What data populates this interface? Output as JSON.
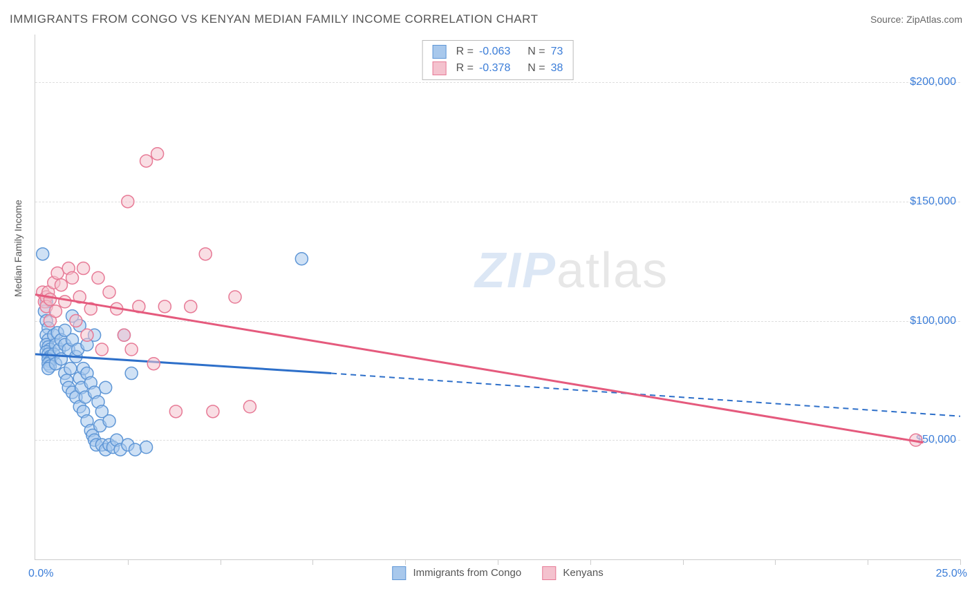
{
  "title": "IMMIGRANTS FROM CONGO VS KENYAN MEDIAN FAMILY INCOME CORRELATION CHART",
  "source_label": "Source:",
  "source_value": "ZipAtlas.com",
  "y_axis_label": "Median Family Income",
  "watermark_zip": "ZIP",
  "watermark_atlas": "atlas",
  "chart": {
    "type": "scatter",
    "xlim": [
      0,
      25
    ],
    "ylim": [
      0,
      220000
    ],
    "background_color": "#ffffff",
    "grid_color": "#dddddd",
    "axis_color": "#cccccc",
    "tick_label_color": "#3b7dd8",
    "tick_label_fontsize": 16,
    "axis_label_fontsize": 14,
    "x_min_label": "0.0%",
    "x_max_label": "25.0%",
    "y_ticks": [
      {
        "value": 50000,
        "label": "$50,000"
      },
      {
        "value": 100000,
        "label": "$100,000"
      },
      {
        "value": 150000,
        "label": "$150,000"
      },
      {
        "value": 200000,
        "label": "$200,000"
      }
    ],
    "x_tick_positions": [
      2.5,
      5,
      7.5,
      10,
      12.5,
      15,
      17.5,
      20,
      22.5,
      25
    ],
    "marker_radius": 9,
    "marker_opacity": 0.55,
    "line_width": 3,
    "series": [
      {
        "name": "Immigrants from Congo",
        "fill_color": "#a8c8ec",
        "stroke_color": "#5e96d6",
        "line_color": "#2d6fc9",
        "R": "-0.063",
        "N": "73",
        "trend": {
          "x1": 0,
          "y1": 86000,
          "x2": 8,
          "y2": 78000,
          "solid_end_x": 8,
          "dash_end_x": 25,
          "dash_end_y": 60000
        },
        "points": [
          {
            "x": 0.2,
            "y": 128000
          },
          {
            "x": 0.3,
            "y": 108000
          },
          {
            "x": 0.25,
            "y": 104000
          },
          {
            "x": 0.3,
            "y": 100000
          },
          {
            "x": 0.35,
            "y": 97000
          },
          {
            "x": 0.3,
            "y": 94000
          },
          {
            "x": 0.35,
            "y": 92000
          },
          {
            "x": 0.3,
            "y": 90000
          },
          {
            "x": 0.35,
            "y": 89000
          },
          {
            "x": 0.4,
            "y": 88000
          },
          {
            "x": 0.3,
            "y": 87000
          },
          {
            "x": 0.35,
            "y": 86000
          },
          {
            "x": 0.4,
            "y": 85000
          },
          {
            "x": 0.35,
            "y": 84000
          },
          {
            "x": 0.4,
            "y": 83000
          },
          {
            "x": 0.35,
            "y": 82000
          },
          {
            "x": 0.4,
            "y": 81000
          },
          {
            "x": 0.35,
            "y": 80000
          },
          {
            "x": 0.5,
            "y": 94000
          },
          {
            "x": 0.55,
            "y": 90000
          },
          {
            "x": 0.5,
            "y": 86000
          },
          {
            "x": 0.55,
            "y": 82000
          },
          {
            "x": 0.6,
            "y": 95000
          },
          {
            "x": 0.65,
            "y": 88000
          },
          {
            "x": 0.7,
            "y": 92000
          },
          {
            "x": 0.7,
            "y": 84000
          },
          {
            "x": 0.8,
            "y": 90000
          },
          {
            "x": 0.8,
            "y": 78000
          },
          {
            "x": 0.85,
            "y": 75000
          },
          {
            "x": 0.9,
            "y": 88000
          },
          {
            "x": 0.9,
            "y": 72000
          },
          {
            "x": 0.95,
            "y": 80000
          },
          {
            "x": 1.0,
            "y": 92000
          },
          {
            "x": 1.0,
            "y": 70000
          },
          {
            "x": 1.1,
            "y": 85000
          },
          {
            "x": 1.1,
            "y": 68000
          },
          {
            "x": 1.15,
            "y": 88000
          },
          {
            "x": 1.2,
            "y": 76000
          },
          {
            "x": 1.2,
            "y": 64000
          },
          {
            "x": 1.25,
            "y": 72000
          },
          {
            "x": 1.3,
            "y": 80000
          },
          {
            "x": 1.3,
            "y": 62000
          },
          {
            "x": 1.35,
            "y": 68000
          },
          {
            "x": 1.4,
            "y": 78000
          },
          {
            "x": 1.4,
            "y": 58000
          },
          {
            "x": 1.5,
            "y": 74000
          },
          {
            "x": 1.5,
            "y": 54000
          },
          {
            "x": 1.55,
            "y": 52000
          },
          {
            "x": 1.6,
            "y": 70000
          },
          {
            "x": 1.6,
            "y": 50000
          },
          {
            "x": 1.65,
            "y": 48000
          },
          {
            "x": 1.7,
            "y": 66000
          },
          {
            "x": 1.75,
            "y": 56000
          },
          {
            "x": 1.8,
            "y": 48000
          },
          {
            "x": 1.8,
            "y": 62000
          },
          {
            "x": 1.9,
            "y": 72000
          },
          {
            "x": 1.9,
            "y": 46000
          },
          {
            "x": 2.0,
            "y": 58000
          },
          {
            "x": 2.0,
            "y": 48000
          },
          {
            "x": 2.1,
            "y": 47000
          },
          {
            "x": 2.2,
            "y": 50000
          },
          {
            "x": 2.3,
            "y": 46000
          },
          {
            "x": 2.4,
            "y": 94000
          },
          {
            "x": 2.5,
            "y": 48000
          },
          {
            "x": 2.6,
            "y": 78000
          },
          {
            "x": 2.7,
            "y": 46000
          },
          {
            "x": 3.0,
            "y": 47000
          },
          {
            "x": 1.4,
            "y": 90000
          },
          {
            "x": 1.6,
            "y": 94000
          },
          {
            "x": 1.2,
            "y": 98000
          },
          {
            "x": 1.0,
            "y": 102000
          },
          {
            "x": 0.8,
            "y": 96000
          },
          {
            "x": 7.2,
            "y": 126000
          }
        ]
      },
      {
        "name": "Kenyans",
        "fill_color": "#f4c2ce",
        "stroke_color": "#e77a96",
        "line_color": "#e55a7d",
        "R": "-0.378",
        "N": "38",
        "trend": {
          "x1": 0,
          "y1": 111000,
          "x2": 24,
          "y2": 49000,
          "solid_end_x": 24,
          "dash_end_x": 24,
          "dash_end_y": 49000
        },
        "points": [
          {
            "x": 0.2,
            "y": 112000
          },
          {
            "x": 0.25,
            "y": 108000
          },
          {
            "x": 0.3,
            "y": 110000
          },
          {
            "x": 0.3,
            "y": 106000
          },
          {
            "x": 0.35,
            "y": 112000
          },
          {
            "x": 0.4,
            "y": 109000
          },
          {
            "x": 0.4,
            "y": 100000
          },
          {
            "x": 0.5,
            "y": 116000
          },
          {
            "x": 0.55,
            "y": 104000
          },
          {
            "x": 0.6,
            "y": 120000
          },
          {
            "x": 0.7,
            "y": 115000
          },
          {
            "x": 0.8,
            "y": 108000
          },
          {
            "x": 0.9,
            "y": 122000
          },
          {
            "x": 1.0,
            "y": 118000
          },
          {
            "x": 1.1,
            "y": 100000
          },
          {
            "x": 1.2,
            "y": 110000
          },
          {
            "x": 1.3,
            "y": 122000
          },
          {
            "x": 1.4,
            "y": 94000
          },
          {
            "x": 1.5,
            "y": 105000
          },
          {
            "x": 1.7,
            "y": 118000
          },
          {
            "x": 1.8,
            "y": 88000
          },
          {
            "x": 2.0,
            "y": 112000
          },
          {
            "x": 2.2,
            "y": 105000
          },
          {
            "x": 2.4,
            "y": 94000
          },
          {
            "x": 2.5,
            "y": 150000
          },
          {
            "x": 2.6,
            "y": 88000
          },
          {
            "x": 2.8,
            "y": 106000
          },
          {
            "x": 3.0,
            "y": 167000
          },
          {
            "x": 3.2,
            "y": 82000
          },
          {
            "x": 3.3,
            "y": 170000
          },
          {
            "x": 3.5,
            "y": 106000
          },
          {
            "x": 3.8,
            "y": 62000
          },
          {
            "x": 4.2,
            "y": 106000
          },
          {
            "x": 4.6,
            "y": 128000
          },
          {
            "x": 4.8,
            "y": 62000
          },
          {
            "x": 5.4,
            "y": 110000
          },
          {
            "x": 5.8,
            "y": 64000
          },
          {
            "x": 23.8,
            "y": 50000
          }
        ]
      }
    ],
    "legend": {
      "items": [
        {
          "label": "Immigrants from Congo",
          "fill": "#a8c8ec",
          "stroke": "#5e96d6"
        },
        {
          "label": "Kenyans",
          "fill": "#f4c2ce",
          "stroke": "#e77a96"
        }
      ]
    },
    "stats_labels": {
      "R": "R =",
      "N": "N ="
    }
  }
}
